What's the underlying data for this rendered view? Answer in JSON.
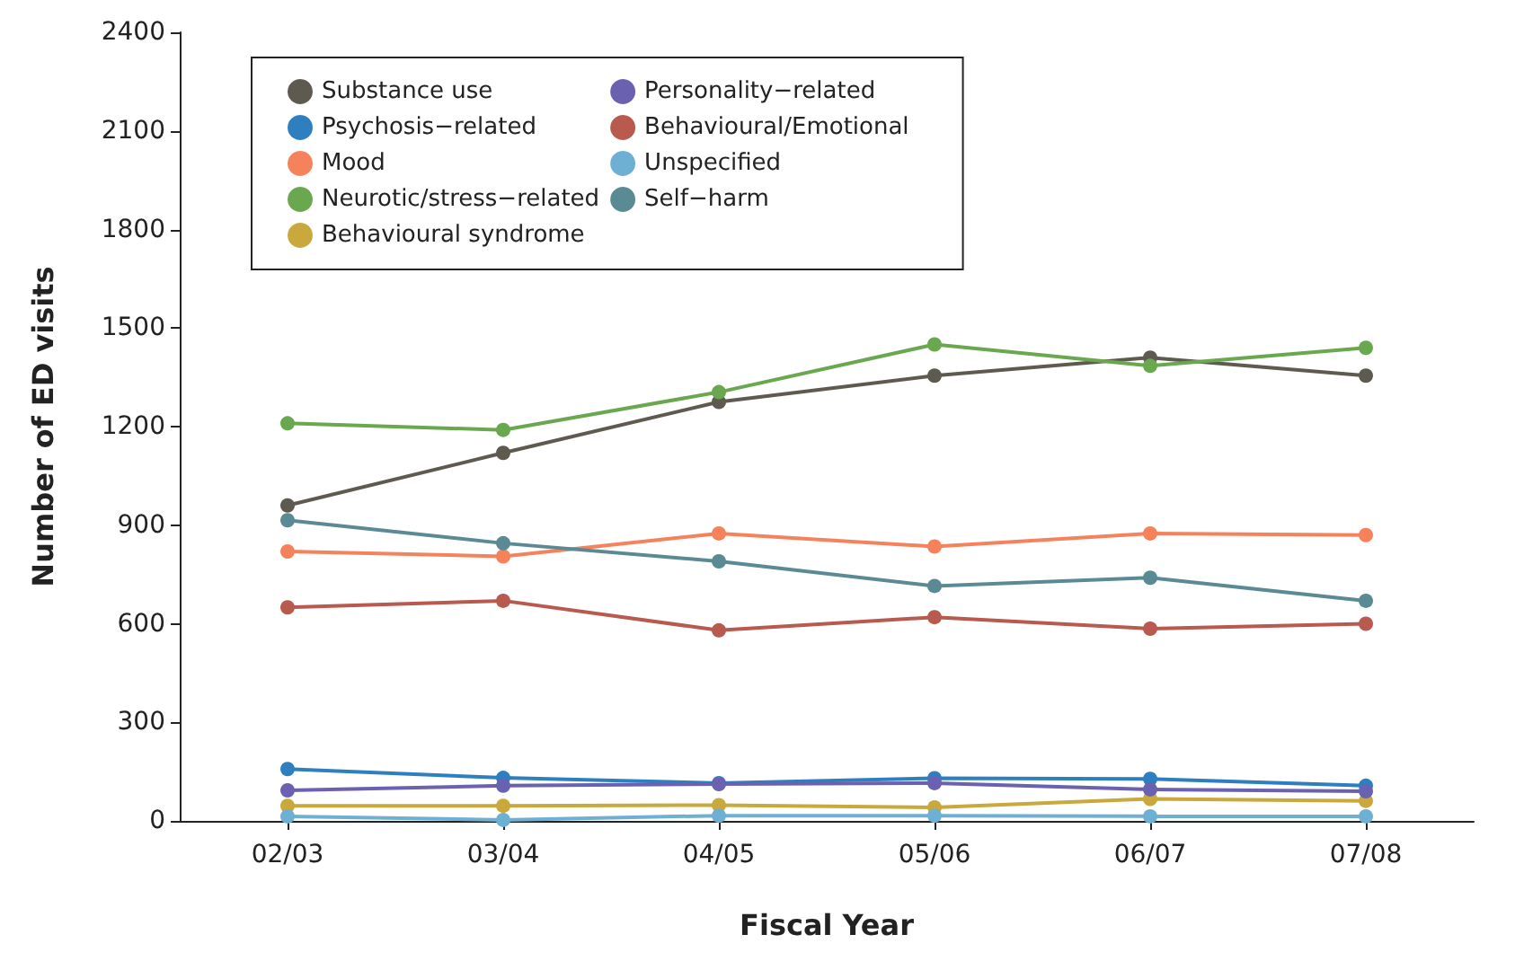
{
  "chart_data": {
    "type": "line",
    "xlabel": "Fiscal Year",
    "ylabel": "Number of ED visits",
    "categories": [
      "02/03",
      "03/04",
      "04/05",
      "05/06",
      "06/07",
      "07/08"
    ],
    "ylim": [
      0,
      2400
    ],
    "yticks": [
      0,
      300,
      600,
      900,
      1200,
      1500,
      1800,
      2100,
      2400
    ],
    "grid": false,
    "legend": "top left",
    "marker": "circle",
    "line_style": "solid",
    "series": [
      {
        "name": "Substance use",
        "color": "#5f5a50",
        "values": [
          960,
          1120,
          1275,
          1355,
          1410,
          1355
        ]
      },
      {
        "name": "Psychosis−related",
        "color": "#2e7fc0",
        "values": [
          158,
          131,
          115,
          130,
          128,
          107
        ]
      },
      {
        "name": "Mood",
        "color": "#f5825a",
        "values": [
          820,
          805,
          875,
          835,
          875,
          870
        ]
      },
      {
        "name": "Neurotic/stress−related",
        "color": "#6aa84f",
        "values": [
          1210,
          1190,
          1305,
          1450,
          1385,
          1440
        ]
      },
      {
        "name": "Behavioural syndrome",
        "color": "#c9a83c",
        "values": [
          46,
          46,
          48,
          41,
          67,
          61
        ]
      },
      {
        "name": "Personality−related",
        "color": "#6a62b0",
        "values": [
          93,
          107,
          112,
          115,
          96,
          90
        ]
      },
      {
        "name": "Behavioural/Emotional",
        "color": "#b85a4d",
        "values": [
          650,
          670,
          580,
          620,
          585,
          600
        ]
      },
      {
        "name": "Unspecified",
        "color": "#6eb0d3",
        "values": [
          14,
          3,
          16,
          16,
          14,
          14
        ]
      },
      {
        "name": "Self−harm",
        "color": "#5a8a94",
        "values": [
          915,
          845,
          790,
          715,
          740,
          670
        ]
      }
    ]
  }
}
